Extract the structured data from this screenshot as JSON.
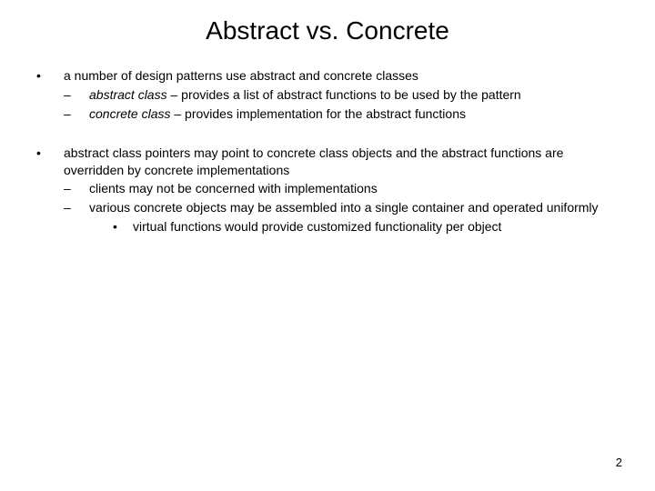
{
  "title": "Abstract vs. Concrete",
  "page_number": "2",
  "colors": {
    "background": "#ffffff",
    "text": "#000000"
  },
  "typography": {
    "title_fontsize": 28,
    "body_fontsize": 14,
    "font_family": "Arial"
  },
  "blocks": [
    {
      "lvl1": "a number of design patterns use abstract and concrete classes",
      "lvl2": [
        {
          "italic": "abstract class",
          "rest": " – provides a list of abstract functions to be used by the pattern"
        },
        {
          "italic": "concrete class",
          "rest": " – provides implementation for the abstract functions"
        }
      ]
    },
    {
      "lvl1": "abstract class pointers may point to concrete class objects and the abstract functions are overridden by concrete implementations",
      "lvl2": [
        {
          "rest": "clients may not be concerned with implementations"
        },
        {
          "rest": "various concrete objects may be assembled into a single container and operated uniformly",
          "lvl3": [
            "virtual functions would provide customized functionality per object"
          ]
        }
      ]
    }
  ],
  "bullets": {
    "lvl1": "•",
    "lvl2": "–",
    "lvl3": "•"
  }
}
